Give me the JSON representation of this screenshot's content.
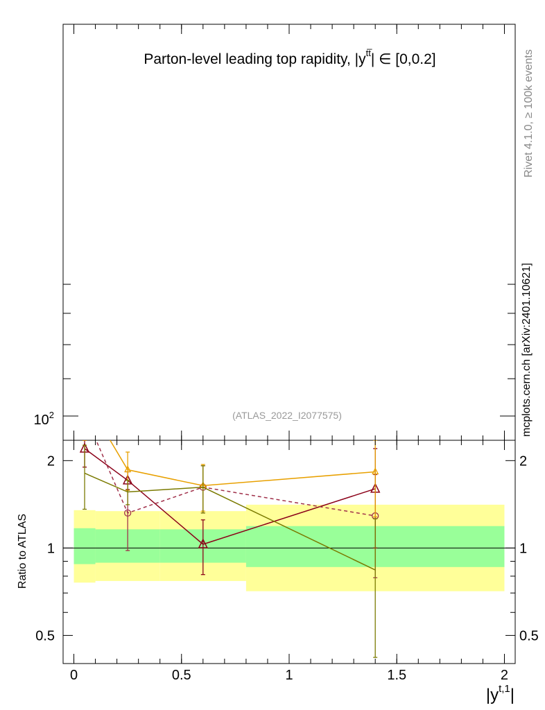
{
  "chart_data": [
    {
      "type": "line",
      "panel": "main",
      "title": "Parton-level leading top rapidity, |y",
      "title_sup": "tt̅",
      "title_tail": "| ∈ [0,0.2]",
      "watermark": "(ATLAS_2022_I2077575)",
      "ytick_label": "10",
      "ytick_exp": "2",
      "yscale": "log",
      "series": []
    },
    {
      "type": "line",
      "panel": "ratio",
      "xlabel": "|y",
      "xlabel_sup": "t,1",
      "xlabel_tail": "|",
      "ylabel": "Ratio to ATLAS",
      "xlim": [
        -0.05,
        2.05
      ],
      "ylim": [
        0.4,
        2.35
      ],
      "yscale": "log",
      "xticks": [
        0,
        0.5,
        1,
        1.5,
        2
      ],
      "xtick_labels": [
        "0",
        "0.5",
        "1",
        "1.5",
        "2"
      ],
      "yticks": [
        0.5,
        1,
        2
      ],
      "ytick_labels": [
        "0.5",
        "1",
        "2"
      ],
      "bands": {
        "edges": [
          0,
          0.1,
          0.4,
          0.8,
          2.0
        ],
        "outer_low": [
          0.76,
          0.77,
          0.77,
          0.71
        ],
        "outer_high": [
          1.35,
          1.34,
          1.34,
          1.41
        ],
        "inner_low": [
          0.88,
          0.89,
          0.89,
          0.86
        ],
        "inner_high": [
          1.17,
          1.16,
          1.16,
          1.19
        ],
        "outer_color": "#ffff99",
        "inner_color": "#99ff99"
      },
      "series": [
        {
          "color": "#8b0018",
          "dash": "solid",
          "marker": "triangle",
          "x": [
            0.05,
            0.25,
            0.6,
            1.4
          ],
          "y": [
            2.2,
            1.71,
            1.03,
            1.6
          ],
          "err_low": [
            0.3,
            0.12,
            0.22,
            0.6
          ],
          "err_high": [
            0.3,
            0.12,
            0.22,
            0.6
          ]
        },
        {
          "color": "#a0304a",
          "dash": "dashed",
          "marker": "circle",
          "x": [
            0.05,
            0.25,
            0.6,
            1.4
          ],
          "y": [
            2.9,
            1.32,
            1.62,
            1.29
          ],
          "err_low": [
            0.3,
            0.34,
            0.3,
            0.5
          ],
          "err_high": [
            0.3,
            0.34,
            0.3,
            0.5
          ]
        },
        {
          "color": "#e8a000",
          "dash": "solid",
          "marker": "triangle-small",
          "x": [
            0.05,
            0.25,
            0.6,
            1.4
          ],
          "y": [
            3.3,
            1.86,
            1.64,
            1.83
          ],
          "err_low": [
            0.4,
            0.28,
            0.3,
            0.55
          ],
          "err_high": [
            0.4,
            0.28,
            0.3,
            0.55
          ]
        },
        {
          "color": "#7a7a00",
          "dash": "solid",
          "marker": "none",
          "x": [
            0.05,
            0.25,
            0.6,
            1.4
          ],
          "y": [
            1.81,
            1.56,
            1.62,
            0.84
          ],
          "err_low": [
            0.45,
            0.15,
            0.3,
            0.42
          ],
          "err_high": [
            0.45,
            0.15,
            0.3,
            0.42
          ]
        }
      ]
    }
  ],
  "side": {
    "rivet_label": "Rivet 4.1.0, ≥ 100k events",
    "mcplots_label": "mcplots.cern.ch [arXiv:2401.10621]"
  }
}
